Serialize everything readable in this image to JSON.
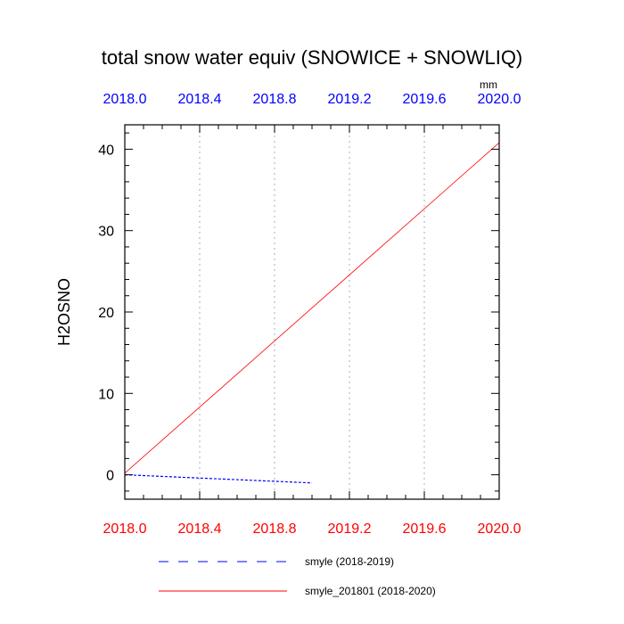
{
  "chart_data": {
    "type": "line",
    "title": "total snow water equiv (SNOWICE + SNOWLIQ)",
    "units": "mm",
    "ylabel": "H2OSNO",
    "xlabel": "",
    "xlim": [
      2018.0,
      2020.0
    ],
    "ylim": [
      -3,
      43
    ],
    "x_ticks": [
      "2018.0",
      "2018.4",
      "2018.8",
      "2019.2",
      "2019.6",
      "2020.0"
    ],
    "x_tick_values": [
      2018.0,
      2018.4,
      2018.8,
      2019.2,
      2019.6,
      2020.0
    ],
    "y_ticks": [
      "0",
      "10",
      "20",
      "30",
      "40"
    ],
    "y_tick_values": [
      0,
      10,
      20,
      30,
      40
    ],
    "top_axis_color": "#0000ff",
    "bottom_axis_color": "#ff0000",
    "grid": "vertical dotted",
    "legend_position": "bottom",
    "series": [
      {
        "name": "smyle (2018-2019)",
        "color": "#0000ff",
        "dash": "dashed",
        "x": [
          2018.0,
          2019.0
        ],
        "y": [
          0.0,
          -1.0
        ]
      },
      {
        "name": "smyle_201801 (2018-2020)",
        "color": "#ff0000",
        "dash": "solid",
        "x": [
          2018.0,
          2020.0
        ],
        "y": [
          0.2,
          40.8
        ]
      }
    ]
  }
}
